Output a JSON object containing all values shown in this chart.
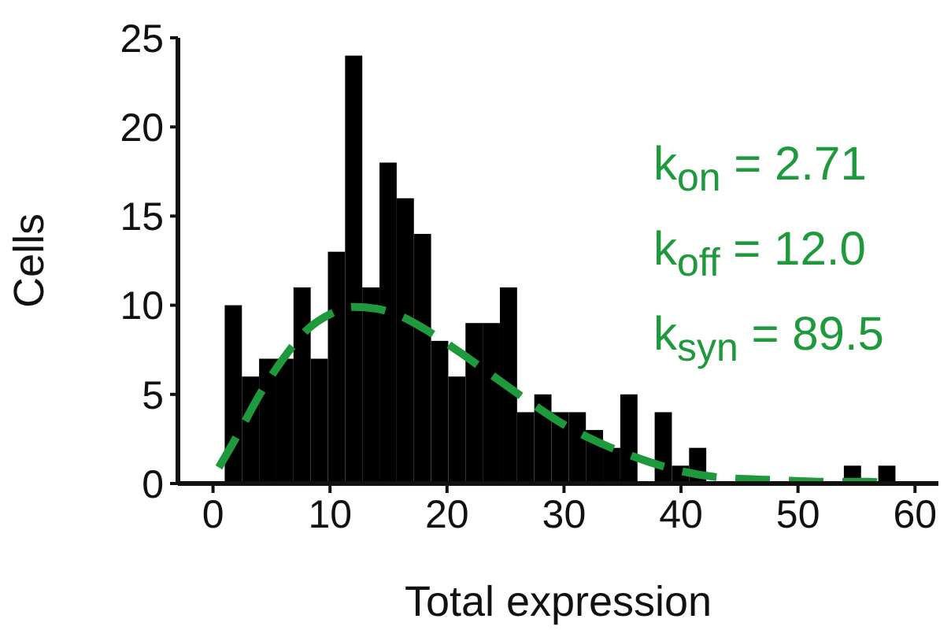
{
  "chart_data": {
    "type": "histogram",
    "xlabel": "Total expression",
    "ylabel": "Cells",
    "bins": [
      1,
      2.47,
      3.94,
      5.41,
      6.88,
      8.35,
      9.82,
      11.29,
      12.76,
      14.23,
      15.7,
      17.17,
      18.64,
      20.11,
      21.58,
      23.05,
      24.52,
      25.99,
      27.46,
      28.93,
      30.4,
      31.87,
      33.34,
      34.81,
      36.28,
      37.75,
      39.22,
      40.69,
      42.16,
      43.63,
      45.1,
      46.57,
      48.04,
      49.51,
      50.98,
      52.45,
      53.92,
      55.39,
      56.86,
      58.33,
      59.8
    ],
    "values": [
      10,
      6,
      7,
      7,
      11,
      7,
      13,
      24,
      11,
      18,
      16,
      14,
      8,
      6,
      9,
      9,
      11,
      4,
      5,
      4,
      4,
      3,
      2,
      5,
      0,
      4,
      1,
      2,
      0,
      0,
      0,
      0,
      0,
      0,
      0,
      0,
      1,
      0,
      1,
      0
    ],
    "color": "#000000",
    "series": [
      {
        "type": "line",
        "color": "#1e9a3c",
        "line_style": "dashed",
        "x": [
          0.5,
          2,
          4,
          6,
          8,
          10,
          12,
          14,
          16,
          18,
          21,
          24,
          27,
          30,
          33,
          36,
          40,
          44,
          48,
          52,
          56,
          58
        ],
        "values": [
          0.9,
          2.6,
          5,
          7,
          8.6,
          9.5,
          9.9,
          9.8,
          9.4,
          8.7,
          7.4,
          6,
          4.6,
          3.3,
          2.3,
          1.5,
          0.7,
          0.3,
          0.2,
          0.1,
          0.1,
          0
        ]
      }
    ],
    "annotations": [
      "k$_{on}$ = 2.71",
      "k$_{off}$ = 12.0",
      "k$_{syn}$ = 89.5"
    ],
    "xlim": [
      -3,
      62
    ],
    "xticks": [
      0,
      10,
      20,
      30,
      40,
      50,
      60
    ],
    "ylim": [
      0,
      25
    ],
    "yticks": [
      0,
      5,
      10,
      15,
      20,
      25
    ],
    "grid": false,
    "legend": false
  }
}
